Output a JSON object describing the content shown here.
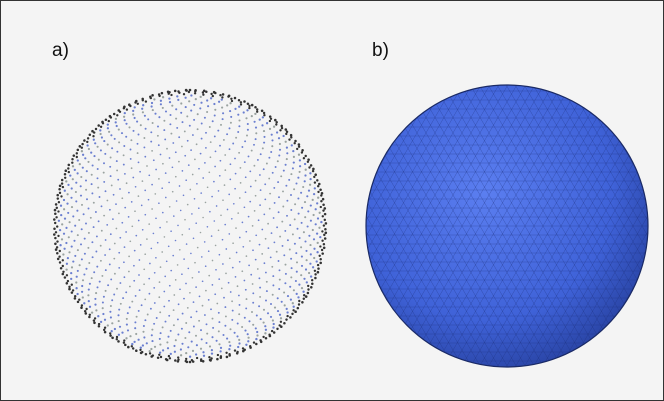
{
  "labels": {
    "a": "a)",
    "b": "b)"
  }
}
